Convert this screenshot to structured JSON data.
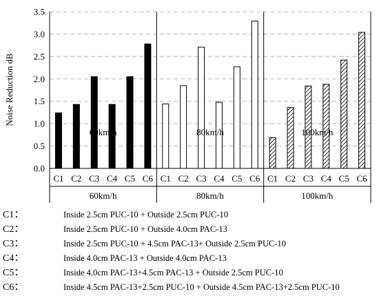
{
  "chart_data": {
    "type": "bar",
    "ylabel": "Noise Reduction dB",
    "ylim": [
      0,
      3.5
    ],
    "yticks": [
      "0.0",
      "0.5",
      "1.0",
      "1.5",
      "2.0",
      "2.5",
      "3.0",
      "3.5"
    ],
    "grid": "horizontal dashed",
    "groups": [
      {
        "label": "60km/h",
        "pattern": "solid-black",
        "categories": [
          "C1",
          "C2",
          "C3",
          "C4",
          "C5",
          "C6"
        ],
        "values": [
          1.24,
          1.43,
          2.05,
          1.43,
          2.05,
          2.78
        ]
      },
      {
        "label": "80km/h",
        "pattern": "white",
        "categories": [
          "C1",
          "C2",
          "C3",
          "C4",
          "C5",
          "C6"
        ],
        "values": [
          1.44,
          1.85,
          2.71,
          1.48,
          2.27,
          3.29
        ]
      },
      {
        "label": "100km/h",
        "pattern": "diagonal-hatch",
        "categories": [
          "C1",
          "C2",
          "C3",
          "C4",
          "C5",
          "C6"
        ],
        "values": [
          0.69,
          1.36,
          1.84,
          1.88,
          2.42,
          3.04
        ]
      }
    ]
  },
  "legend": [
    {
      "code": "C1：",
      "text": "Inside 2.5cm PUC-10 + Outside 2.5cm PUC-10"
    },
    {
      "code": "C2：",
      "text": "Inside 2.5cm PUC-10 + Outside 4.0cm PAC-13"
    },
    {
      "code": "C3：",
      "text": "Inside 2.5cm PUC-10 + 4.5cm PAC-13+ Outside 2.5cm PUC-10"
    },
    {
      "code": "C4：",
      "text": "Inside 4.0cm PAC-13 + Outside 4.0cm PAC-13"
    },
    {
      "code": "C5：",
      "text": "Inside 4.0cm PAC-13+4.5cm PAC-13 + Outside 2.5cm PUC-10"
    },
    {
      "code": "C6：",
      "text": "Inside 4.5cm PAC-13+2.5cm PUC-10 + Outside 4.5cm PAC-13+2.5cm PUC-10"
    }
  ]
}
